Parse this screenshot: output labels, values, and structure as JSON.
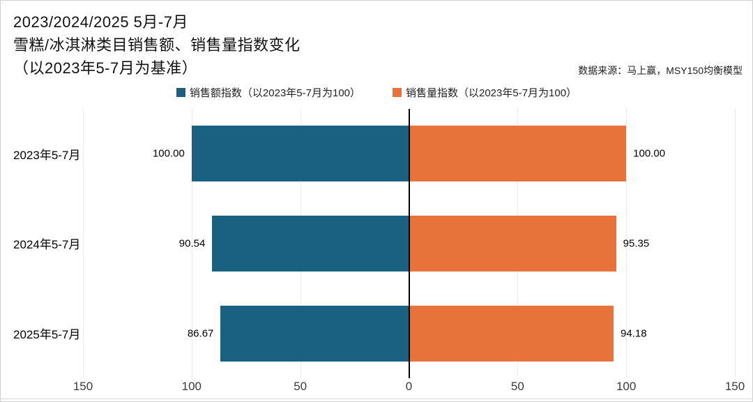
{
  "header": {
    "title_lines": [
      "2023/2024/2025 5月-7月",
      "雪糕/冰淇淋类目销售额、销售量指数变化",
      "（以2023年5-7月为基准）"
    ],
    "source_note": "数据来源：马上赢，MSY150均衡模型"
  },
  "chart_data": {
    "type": "bar",
    "variant": "horizontal-diverging",
    "title": "2023/2024/2025 5月-7月 雪糕/冰淇淋类目销售额、销售量指数变化（以2023年5-7月为基准）",
    "categories": [
      "2023年5-7月",
      "2024年5-7月",
      "2025年5-7月"
    ],
    "series": [
      {
        "name": "销售额指数（以2023年5-7月为100）",
        "side": "left",
        "color": "#1A6080",
        "values": [
          100.0,
          90.54,
          86.67
        ],
        "labels": [
          "100.00",
          "90.54",
          "86.67"
        ]
      },
      {
        "name": "销售量指数（以2023年5-7月为100）",
        "side": "right",
        "color": "#E8733A",
        "values": [
          100.0,
          95.35,
          94.18
        ],
        "labels": [
          "100.00",
          "95.35",
          "94.18"
        ]
      }
    ],
    "axis": {
      "max": 150,
      "tick_values": [
        -150,
        -100,
        -50,
        0,
        50,
        100,
        150
      ],
      "tick_labels": [
        "150",
        "100",
        "50",
        "0",
        "50",
        "100",
        "150"
      ]
    },
    "legend_position": "top",
    "grid": true,
    "baseline_note": "values indexed to 2023年5-7月 = 100"
  }
}
